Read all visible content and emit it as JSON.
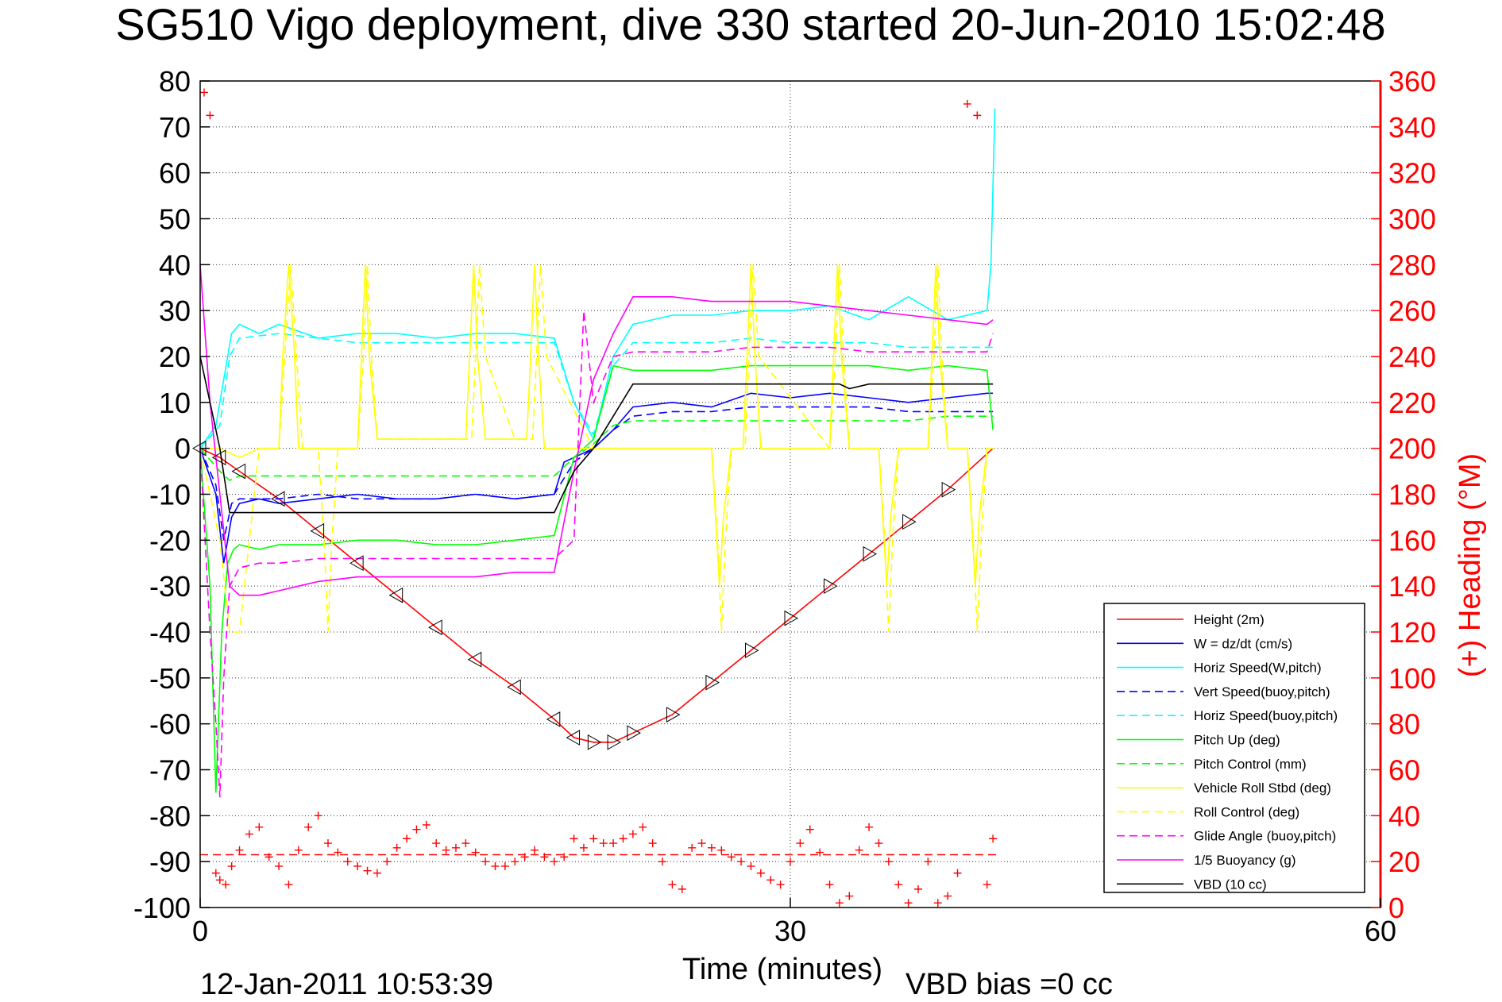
{
  "chart_data": {
    "type": "line",
    "title": "SG510 Vigo deployment, dive 330 started 20-Jun-2010 15:02:48",
    "xlabel": "Time (minutes)",
    "ylabel": "",
    "y2label": "(+) Heading (°M)",
    "xlim": [
      0,
      60
    ],
    "ylim": [
      -100,
      80
    ],
    "y2lim": [
      0,
      360
    ],
    "x_ticks": [
      "0",
      "30",
      "60"
    ],
    "y_ticks": [
      "80",
      "70",
      "60",
      "50",
      "40",
      "30",
      "20",
      "10",
      "0",
      "-10",
      "-20",
      "-30",
      "-40",
      "-50",
      "-60",
      "-70",
      "-80",
      "-90",
      "-100"
    ],
    "y2_ticks": [
      "360",
      "340",
      "320",
      "300",
      "280",
      "260",
      "240",
      "220",
      "200",
      "180",
      "160",
      "140",
      "120",
      "100",
      "80",
      "60",
      "40",
      "20",
      "0"
    ],
    "grid": true,
    "legend_position": "bottom-right",
    "footer_left": "12-Jan-2011 10:53:39",
    "footer_right": "VBD bias =0 cc",
    "colors": {
      "height": "#ff0000",
      "w": "#0000ff",
      "horiz_w": "#00ffff",
      "vert_buoy": "#0000ff",
      "horiz_buoy": "#00ffff",
      "pitch": "#00ff00",
      "pitch_ctl": "#00ff00",
      "roll": "#ffff00",
      "roll_ctl": "#ffff00",
      "glide": "#ff00ff",
      "buoyancy": "#ff00ff",
      "vbd": "#000000",
      "heading": "#ff0000",
      "right_axis": "#ff0000"
    },
    "series": [
      {
        "name": "Height (2m)",
        "color_key": "height",
        "dash": "",
        "x": [
          0,
          1,
          2,
          4,
          6,
          8,
          10,
          12,
          14,
          16,
          18,
          19,
          20,
          21,
          22,
          24,
          26,
          28,
          30,
          32,
          34,
          36,
          38,
          40.3
        ],
        "y": [
          0,
          -2,
          -5,
          -11,
          -18,
          -25,
          -32,
          -39,
          -46,
          -52,
          -59,
          -63,
          -64,
          -64,
          -62,
          -58,
          -51,
          -44,
          -37,
          -30,
          -23,
          -16,
          -9,
          0
        ]
      },
      {
        "name": "W = dz/dt (cm/s)",
        "color_key": "w",
        "dash": "",
        "x": [
          0,
          0.8,
          1.2,
          1.6,
          2,
          3,
          4,
          6,
          8,
          10,
          12,
          14,
          16,
          18,
          18.5,
          19,
          20,
          21,
          22,
          24,
          26,
          28,
          30,
          32,
          34,
          36,
          38,
          40,
          40.3
        ],
        "y": [
          0,
          -10,
          -25,
          -15,
          -12,
          -11,
          -12,
          -11,
          -10,
          -11,
          -11,
          -10,
          -11,
          -10,
          -3,
          -2,
          0,
          4,
          9,
          10,
          9,
          12,
          11,
          12,
          11,
          10,
          11,
          12,
          12
        ]
      },
      {
        "name": "Horiz Speed(W,pitch)",
        "color_key": "horiz_w",
        "dash": "",
        "x": [
          0,
          0.8,
          1.2,
          1.6,
          2,
          3,
          4,
          6,
          8,
          10,
          12,
          14,
          16,
          18,
          19,
          20,
          21,
          22,
          24,
          26,
          28,
          30,
          32,
          34,
          36,
          38,
          40,
          40.2,
          40.4
        ],
        "y": [
          0,
          5,
          15,
          25,
          27,
          25,
          27,
          24,
          25,
          25,
          24,
          25,
          25,
          24,
          10,
          2,
          20,
          27,
          29,
          29,
          30,
          30,
          31,
          28,
          33,
          28,
          30,
          40,
          74
        ]
      },
      {
        "name": "Vert Speed(buoy,pitch)",
        "color_key": "vert_buoy",
        "dash": "10,6",
        "x": [
          0,
          0.8,
          1.2,
          1.6,
          2,
          3,
          4,
          6,
          8,
          10,
          12,
          14,
          16,
          18,
          19,
          20,
          21,
          22,
          24,
          26,
          28,
          30,
          32,
          34,
          36,
          38,
          40,
          40.3
        ],
        "y": [
          0,
          -8,
          -20,
          -12,
          -11,
          -11,
          -11,
          -10,
          -11,
          -11,
          -11,
          -10,
          -11,
          -10,
          -3,
          0,
          4,
          7,
          8,
          8,
          9,
          9,
          9,
          9,
          8,
          8,
          8,
          8
        ]
      },
      {
        "name": "Horiz Speed(buoy,pitch)",
        "color_key": "horiz_buoy",
        "dash": "10,6",
        "x": [
          0,
          1,
          1.5,
          2,
          4,
          6,
          8,
          10,
          12,
          14,
          16,
          18,
          19,
          20,
          21,
          22,
          24,
          26,
          28,
          30,
          32,
          34,
          36,
          38,
          40,
          40.3
        ],
        "y": [
          0,
          5,
          20,
          24,
          25,
          24,
          23,
          23,
          23,
          23,
          23,
          23,
          10,
          3,
          18,
          23,
          23,
          23,
          24,
          23,
          23,
          23,
          22,
          22,
          22,
          22
        ]
      },
      {
        "name": "Pitch Up (deg)",
        "color_key": "pitch",
        "dash": "",
        "x": [
          0,
          0.5,
          0.8,
          1.1,
          1.4,
          1.7,
          2,
          3,
          4,
          6,
          8,
          10,
          12,
          14,
          16,
          18,
          19,
          20,
          21,
          22,
          24,
          26,
          28,
          30,
          32,
          34,
          36,
          38,
          40,
          40.3
        ],
        "y": [
          0,
          -30,
          -75,
          -40,
          -25,
          -22,
          -21,
          -22,
          -21,
          -21,
          -20,
          -20,
          -21,
          -21,
          -20,
          -19,
          -2,
          2,
          18,
          17,
          17,
          17,
          18,
          18,
          18,
          18,
          17,
          18,
          17,
          4
        ]
      },
      {
        "name": "Pitch Control (mm)",
        "color_key": "pitch_ctl",
        "dash": "10,6",
        "x": [
          0,
          1,
          1.5,
          2,
          4,
          6,
          8,
          10,
          12,
          14,
          16,
          18,
          19,
          20,
          21,
          22,
          24,
          26,
          28,
          30,
          32,
          34,
          36,
          38,
          40,
          40.3
        ],
        "y": [
          0,
          -5,
          -7,
          -6,
          -6,
          -6,
          -6,
          -6,
          -6,
          -6,
          -6,
          -6,
          -2,
          1,
          5,
          6,
          6,
          6,
          6,
          6,
          6,
          6,
          6,
          7,
          7,
          7
        ]
      },
      {
        "name": "Vehicle Roll Stbd (deg)",
        "color_key": "roll",
        "dash": "",
        "x": [
          0,
          1,
          2,
          3,
          4,
          4.2,
          4.5,
          4.8,
          5,
          6,
          7,
          8,
          8,
          8.2,
          8.4,
          8.6,
          9,
          12,
          13.5,
          13.7,
          13.9,
          14.1,
          14.5,
          16,
          16.6,
          16.8,
          17,
          17.2,
          17.5,
          20,
          22,
          25,
          26,
          26.2,
          26.4,
          26.6,
          27,
          27.6,
          27.8,
          28,
          28.2,
          28.5,
          31,
          32,
          32.2,
          32.4,
          32.6,
          33,
          34,
          34.5,
          34.7,
          34.9,
          35.1,
          35.5,
          36,
          37,
          37.2,
          37.4,
          37.6,
          38,
          39,
          39.2,
          39.4,
          39.6,
          40,
          40.3
        ],
        "y": [
          0,
          0,
          -2,
          0,
          0,
          20,
          40,
          20,
          0,
          0,
          0,
          0,
          0,
          20,
          40,
          20,
          2,
          2,
          2,
          20,
          40,
          20,
          2,
          2,
          2,
          20,
          40,
          20,
          0,
          0,
          0,
          0,
          0,
          -15,
          -30,
          -15,
          0,
          0,
          20,
          40,
          20,
          0,
          0,
          0,
          20,
          40,
          20,
          0,
          0,
          0,
          -15,
          -30,
          -15,
          0,
          0,
          0,
          20,
          40,
          20,
          0,
          0,
          -15,
          -30,
          -15,
          0,
          0
        ]
      },
      {
        "name": "Roll Control (deg)",
        "color_key": "roll_ctl",
        "dash": "10,6",
        "x": [
          0,
          1,
          1.5,
          2,
          2.5,
          3,
          4,
          4.3,
          4.6,
          4.9,
          5.2,
          6,
          6.3,
          6.5,
          6.7,
          7,
          8,
          8.3,
          8.5,
          8.7,
          9,
          12,
          13.8,
          14,
          14.2,
          14.5,
          16,
          16.9,
          17.1,
          17.3,
          17.6,
          20,
          26,
          26.3,
          26.5,
          26.7,
          27,
          27.7,
          27.9,
          28.1,
          28.4,
          32,
          32.3,
          32.5,
          32.7,
          33,
          34.5,
          34.8,
          35,
          35.2,
          35.5,
          37,
          37.3,
          37.5,
          37.7,
          38,
          39,
          39.3,
          39.5,
          39.7,
          40,
          40.3
        ],
        "y": [
          0,
          -20,
          -40,
          -40,
          -20,
          0,
          0,
          20,
          40,
          20,
          0,
          0,
          -20,
          -40,
          -20,
          0,
          0,
          20,
          40,
          20,
          2,
          2,
          2,
          20,
          40,
          20,
          2,
          2,
          20,
          40,
          20,
          0,
          0,
          -20,
          -40,
          -20,
          0,
          0,
          20,
          40,
          20,
          0,
          20,
          40,
          20,
          0,
          0,
          -20,
          -40,
          -20,
          0,
          0,
          20,
          40,
          20,
          0,
          0,
          -20,
          -40,
          -20,
          0,
          0
        ]
      },
      {
        "name": "Glide Angle (buoy,pitch)",
        "color_key": "glide",
        "dash": "10,6",
        "x": [
          0,
          0.5,
          0.8,
          1,
          1.2,
          1.5,
          2,
          3,
          4,
          6,
          8,
          10,
          12,
          14,
          16,
          18,
          19,
          19.5,
          20,
          21,
          22,
          24,
          26,
          28,
          30,
          32,
          34,
          36,
          38,
          40,
          40.3
        ],
        "y": [
          0,
          -40,
          -60,
          -76,
          -50,
          -30,
          -26,
          -25,
          -25,
          -24,
          -24,
          -24,
          -24,
          -24,
          -24,
          -24,
          -20,
          30,
          10,
          20,
          21,
          21,
          21,
          22,
          22,
          22,
          21,
          21,
          21,
          21,
          25
        ]
      },
      {
        "name": "1/5 Buoyancy (g)",
        "color_key": "buoyancy",
        "dash": "",
        "x": [
          0,
          0.5,
          1,
          1.5,
          2,
          3,
          4,
          6,
          8,
          10,
          12,
          14,
          16,
          18,
          19,
          20,
          21,
          22,
          24,
          26,
          28,
          30,
          32,
          34,
          36,
          38,
          40,
          40.3
        ],
        "y": [
          40,
          10,
          -10,
          -30,
          -32,
          -32,
          -31,
          -29,
          -28,
          -28,
          -28,
          -28,
          -27,
          -27,
          -5,
          15,
          25,
          33,
          33,
          32,
          32,
          32,
          31,
          30,
          29,
          28,
          27,
          28
        ]
      },
      {
        "name": "VBD (10 cc)",
        "color_key": "vbd",
        "dash": "",
        "x": [
          0,
          1,
          1.5,
          2,
          18,
          19,
          20,
          21,
          22,
          24,
          26,
          28,
          30,
          32,
          32.5,
          33,
          34,
          36,
          38,
          40,
          40.3
        ],
        "y": [
          20,
          0,
          -14,
          -14,
          -14,
          -5,
          0,
          7,
          14,
          14,
          14,
          14,
          14,
          14,
          14,
          13,
          14,
          14,
          14,
          14,
          14
        ]
      }
    ],
    "heading": {
      "name": "Heading",
      "axis": "right",
      "marker": "+",
      "reference_line": 23,
      "x": [
        0.2,
        0.5,
        0.8,
        1,
        1.3,
        1.6,
        2,
        2.5,
        3,
        3.5,
        4,
        4.5,
        5,
        5.5,
        6,
        6.5,
        7,
        7.5,
        8,
        8.5,
        9,
        9.5,
        10,
        10.5,
        11,
        11.5,
        12,
        12.5,
        13,
        13.5,
        14,
        14.5,
        15,
        15.5,
        16,
        16.5,
        17,
        17.5,
        18,
        18.5,
        19,
        19.5,
        20,
        20.5,
        21,
        21.5,
        22,
        22.5,
        23,
        23.5,
        24,
        24.5,
        25,
        25.5,
        26,
        26.5,
        27,
        27.5,
        28,
        28.5,
        29,
        29.5,
        30,
        30.5,
        31,
        31.5,
        32,
        32.5,
        33,
        33.5,
        34,
        34.5,
        35,
        35.5,
        36,
        36.5,
        37,
        37.5,
        38,
        38.5,
        39,
        39.5,
        40,
        40.3
      ],
      "y": [
        355,
        345,
        15,
        12,
        10,
        18,
        25,
        32,
        35,
        22,
        18,
        10,
        25,
        35,
        40,
        28,
        24,
        20,
        18,
        16,
        15,
        20,
        26,
        30,
        34,
        36,
        28,
        25,
        26,
        28,
        24,
        20,
        18,
        18,
        20,
        22,
        25,
        22,
        20,
        22,
        30,
        26,
        30,
        28,
        28,
        30,
        32,
        35,
        28,
        20,
        10,
        8,
        26,
        28,
        26,
        25,
        22,
        20,
        18,
        15,
        12,
        10,
        20,
        28,
        34,
        24,
        10,
        2,
        5,
        25,
        35,
        28,
        20,
        10,
        2,
        8,
        20,
        2,
        5,
        15,
        350,
        345,
        10,
        30
      ]
    }
  }
}
